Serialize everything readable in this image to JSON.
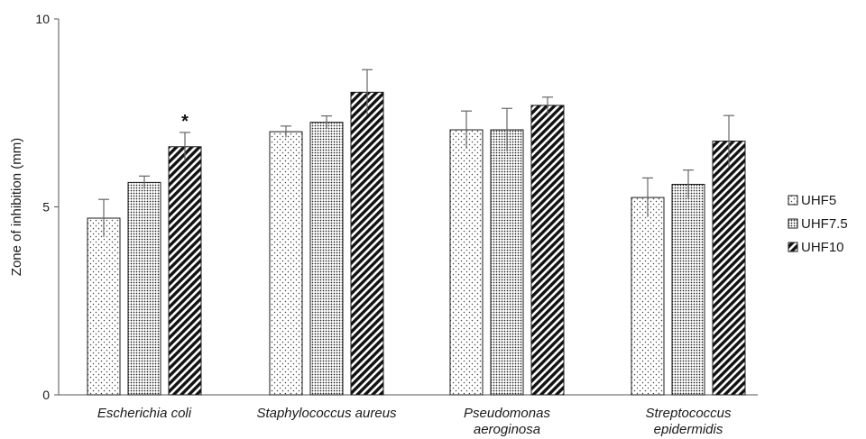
{
  "chart_data": {
    "type": "bar",
    "ylabel": "Zone of inhibition (mm)",
    "ylim": [
      0,
      10
    ],
    "yticks": [
      "0",
      "5",
      "10"
    ],
    "categories": [
      [
        "Escherichia coli"
      ],
      [
        "Staphylococcus aureus"
      ],
      [
        "Pseudomonas",
        "aeroginosa"
      ],
      [
        "Streptococcus",
        "epidermidis"
      ]
    ],
    "series": [
      {
        "name": "UHF5",
        "pattern": "sparse-dots",
        "values": [
          4.7,
          7.0,
          7.05,
          5.25
        ],
        "errors": [
          0.5,
          0.15,
          0.5,
          0.52
        ]
      },
      {
        "name": "UHF7.5",
        "pattern": "dense-dots",
        "values": [
          5.65,
          7.25,
          7.05,
          5.6
        ],
        "errors": [
          0.17,
          0.17,
          0.57,
          0.38
        ]
      },
      {
        "name": "UHF10",
        "pattern": "diagonal-hatch",
        "values": [
          6.6,
          8.05,
          7.7,
          6.75
        ],
        "errors": [
          0.38,
          0.6,
          0.22,
          0.68
        ]
      }
    ],
    "annotations": [
      {
        "text": "*",
        "category_index": 0,
        "series_index": 2
      }
    ],
    "grid": false,
    "legend_position": "right",
    "colors": {
      "bar_stroke": "#1a1a1a",
      "axis": "#555555",
      "background": "#ffffff"
    }
  }
}
